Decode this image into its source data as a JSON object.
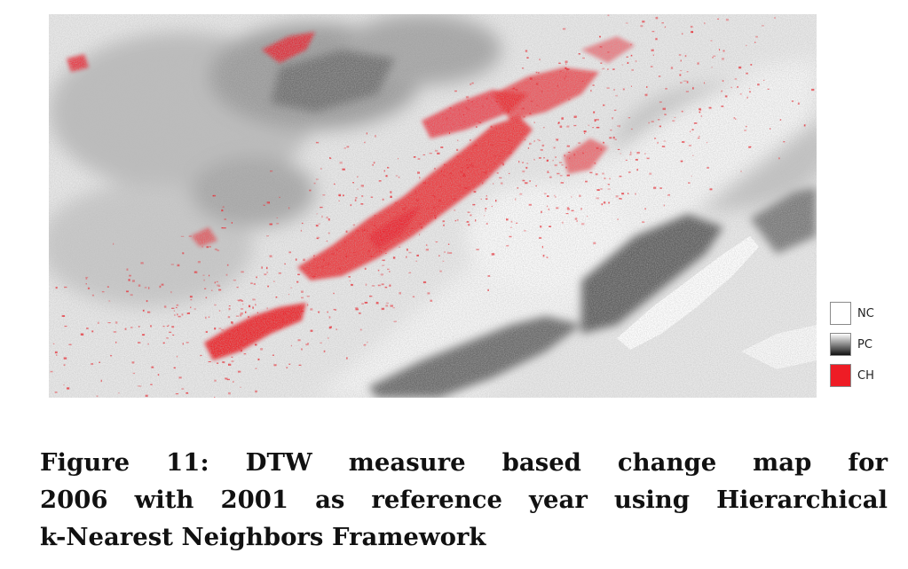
{
  "legend": {
    "items": [
      {
        "label": "NC",
        "color": "#ffffff"
      },
      {
        "label": "PC",
        "gradient": [
          "#ffffff",
          "#111111"
        ]
      },
      {
        "label": "CH",
        "color": "#ee1c25"
      }
    ]
  },
  "caption": {
    "line1": "Figure 11:  DTW measure based change map for",
    "line2": "2006 with 2001 as reference year using Hierarchical",
    "line3": "k-Nearest Neighbors Framework"
  },
  "colors": {
    "no_change": "#ffffff",
    "partial_change_dark": "#4a4a4a",
    "partial_change_mid": "#9a9a9a",
    "change": "#ee1c25"
  }
}
